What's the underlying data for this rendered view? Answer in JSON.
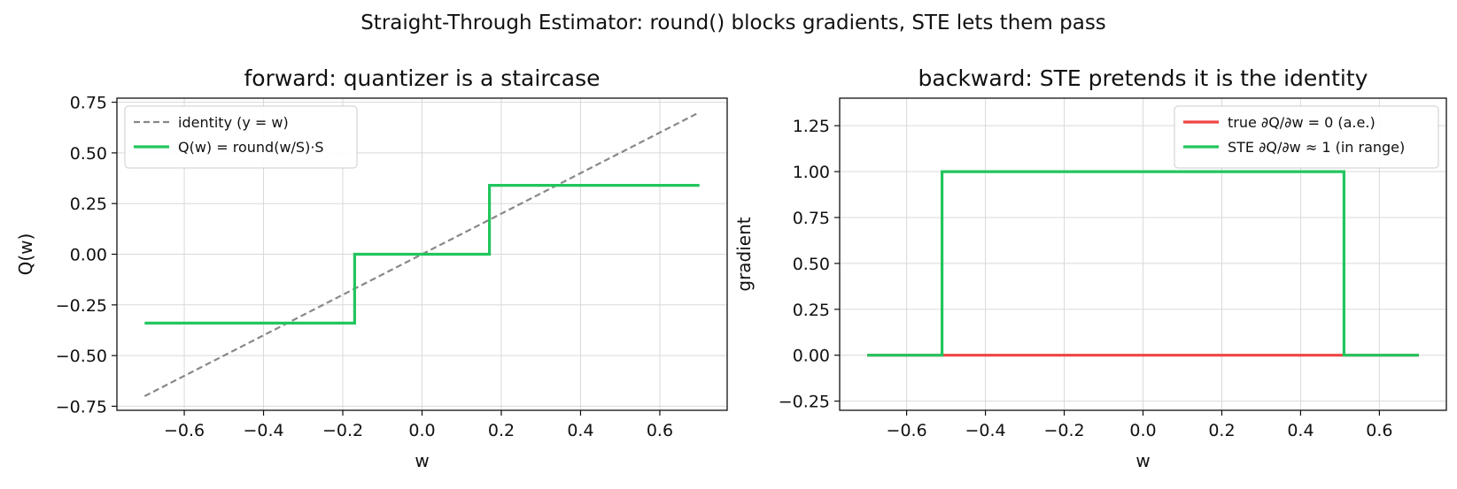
{
  "suptitle": "Straight-Through Estimator: round() blocks gradients, STE lets them pass",
  "chart_data": [
    {
      "type": "line",
      "title": "forward: quantizer is a staircase",
      "xlabel": "w",
      "ylabel": "Q(w)",
      "xlim": [
        -0.77,
        0.77
      ],
      "ylim": [
        -0.77,
        0.77
      ],
      "xticks": [
        -0.6,
        -0.4,
        -0.2,
        0.0,
        0.2,
        0.4,
        0.6
      ],
      "xtick_labels": [
        "−0.6",
        "−0.4",
        "−0.2",
        "0.0",
        "0.2",
        "0.4",
        "0.6"
      ],
      "yticks": [
        -0.75,
        -0.5,
        -0.25,
        0.0,
        0.25,
        0.5,
        0.75
      ],
      "ytick_labels": [
        "−0.75",
        "−0.50",
        "−0.25",
        "0.00",
        "0.25",
        "0.50",
        "0.75"
      ],
      "grid": true,
      "legend_position": "upper-left",
      "series": [
        {
          "name": "identity (y = w)",
          "color": "#888888",
          "dash": "dashed",
          "x": [
            -0.7,
            0.7
          ],
          "y": [
            -0.7,
            0.7
          ]
        },
        {
          "name": "Q(w) = round(w/S)·S",
          "color": "#22c55e",
          "dash": "solid",
          "x": [
            -0.7,
            -0.17,
            -0.17,
            0.17,
            0.17,
            0.7
          ],
          "y": [
            -0.34,
            -0.34,
            0.0,
            0.0,
            0.34,
            0.34
          ]
        }
      ]
    },
    {
      "type": "line",
      "title": "backward: STE pretends it is the identity",
      "xlabel": "w",
      "ylabel": "gradient",
      "xlim": [
        -0.77,
        0.77
      ],
      "ylim": [
        -0.3,
        1.4
      ],
      "xticks": [
        -0.6,
        -0.4,
        -0.2,
        0.0,
        0.2,
        0.4,
        0.6
      ],
      "xtick_labels": [
        "−0.6",
        "−0.4",
        "−0.2",
        "0.0",
        "0.2",
        "0.4",
        "0.6"
      ],
      "yticks": [
        -0.25,
        0.0,
        0.25,
        0.5,
        0.75,
        1.0,
        1.25
      ],
      "ytick_labels": [
        "−0.25",
        "0.00",
        "0.25",
        "0.50",
        "0.75",
        "1.00",
        "1.25"
      ],
      "grid": true,
      "legend_position": "upper-right",
      "series": [
        {
          "name": "true ∂Q/∂w = 0 (a.e.)",
          "color": "#ef4444",
          "dash": "solid",
          "x": [
            -0.7,
            0.7
          ],
          "y": [
            0.0,
            0.0
          ]
        },
        {
          "name": "STE ∂Q/∂w ≈ 1 (in range)",
          "color": "#22c55e",
          "dash": "solid",
          "x": [
            -0.7,
            -0.51,
            -0.51,
            0.51,
            0.51,
            0.7
          ],
          "y": [
            0.0,
            0.0,
            1.0,
            1.0,
            0.0,
            0.0
          ]
        }
      ]
    }
  ]
}
